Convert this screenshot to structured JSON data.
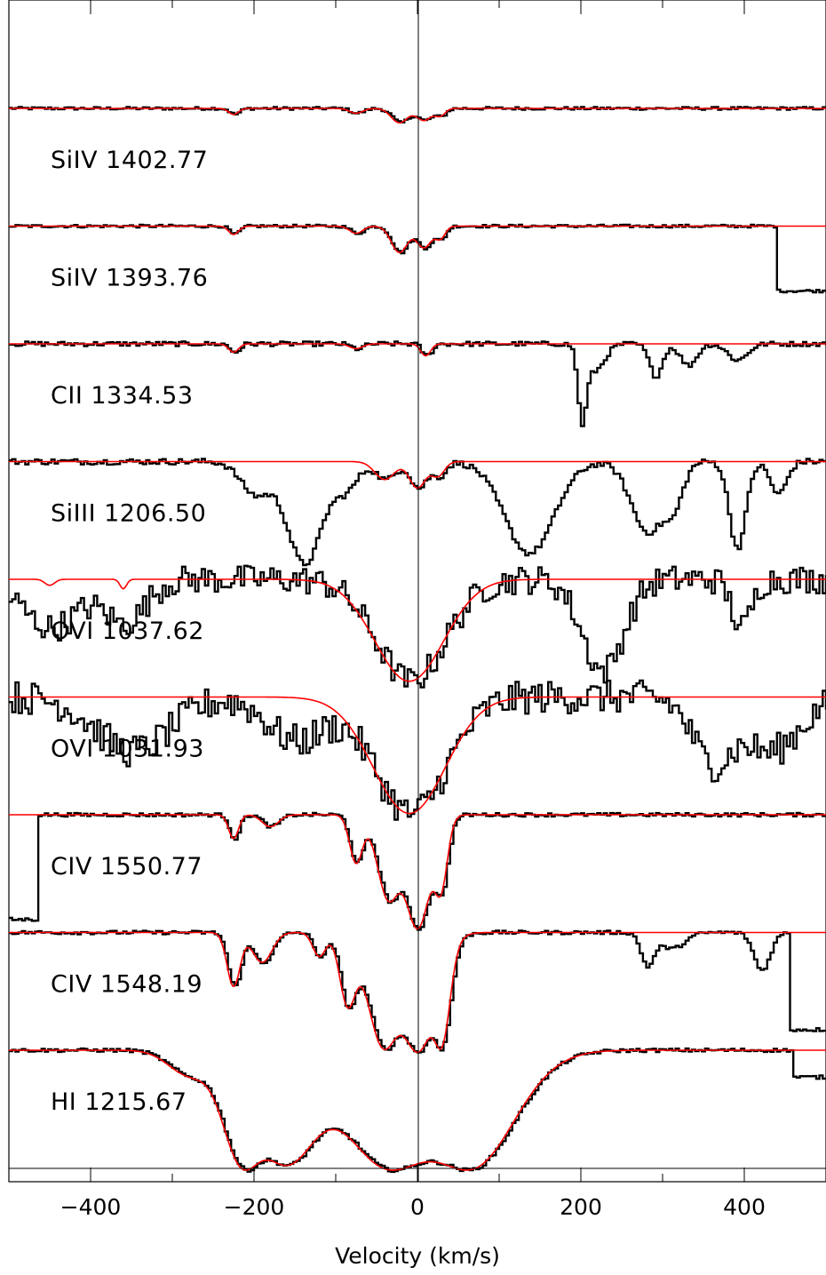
{
  "chart_data": {
    "type": "line",
    "xlabel": "Velocity (km/s)",
    "ylabel": "",
    "xlim": [
      -500,
      500
    ],
    "x_ticks": [
      -400,
      -200,
      0,
      200,
      400
    ],
    "x_tick_labels": [
      "−400",
      "−200",
      "0",
      "200",
      "400"
    ],
    "zero_velocity_line": 0,
    "grid": false,
    "colors": {
      "data": "#000000",
      "model": "#ff0000"
    },
    "series_note_order": "top to bottom",
    "panels": [
      {
        "label": "SiIV 1402.77",
        "components": [
          {
            "v": -225,
            "depth": 0.05,
            "w": 6
          },
          {
            "v": -75,
            "depth": 0.04,
            "w": 8
          },
          {
            "v": -22,
            "depth": 0.12,
            "w": 10
          },
          {
            "v": 8,
            "depth": 0.1,
            "w": 9
          },
          {
            "v": 28,
            "depth": 0.06,
            "w": 6
          }
        ],
        "contaminants": [],
        "noise": 0.012
      },
      {
        "label": "SiIV 1393.76",
        "components": [
          {
            "v": -225,
            "depth": 0.07,
            "w": 6
          },
          {
            "v": -75,
            "depth": 0.06,
            "w": 8
          },
          {
            "v": -22,
            "depth": 0.22,
            "w": 10
          },
          {
            "v": 8,
            "depth": 0.18,
            "w": 9
          },
          {
            "v": 28,
            "depth": 0.1,
            "w": 6
          }
        ],
        "contaminants": [
          {
            "v0": 440,
            "v1": 500,
            "depth": 0.6
          }
        ],
        "noise": 0.012
      },
      {
        "label": "CII 1334.53",
        "components": [
          {
            "v": -225,
            "depth": 0.07,
            "w": 6
          },
          {
            "v": -75,
            "depth": 0.04,
            "w": 8
          },
          {
            "v": 10,
            "depth": 0.1,
            "w": 6
          }
        ],
        "contaminants": [
          {
            "v": 200,
            "depth": 0.72,
            "w": 5
          },
          {
            "v": 215,
            "depth": 0.25,
            "w": 12
          },
          {
            "v": 290,
            "depth": 0.3,
            "w": 8
          },
          {
            "v": 330,
            "depth": 0.2,
            "w": 10
          },
          {
            "v": 390,
            "depth": 0.15,
            "w": 12
          }
        ],
        "noise": 0.02
      },
      {
        "label": "SiIII 1206.50",
        "components": [
          {
            "v": -40,
            "depth": 0.15,
            "w": 12
          },
          {
            "v": 0,
            "depth": 0.22,
            "w": 10
          },
          {
            "v": 25,
            "depth": 0.12,
            "w": 8
          }
        ],
        "contaminants": [
          {
            "v": -140,
            "depth": 0.95,
            "w": 22
          },
          {
            "v": -200,
            "depth": 0.3,
            "w": 18
          },
          {
            "v": -90,
            "depth": 0.25,
            "w": 15
          },
          {
            "v": 135,
            "depth": 0.85,
            "w": 30
          },
          {
            "v": 280,
            "depth": 0.65,
            "w": 20
          },
          {
            "v": 310,
            "depth": 0.4,
            "w": 12
          },
          {
            "v": 390,
            "depth": 0.8,
            "w": 10
          },
          {
            "v": 440,
            "depth": 0.3,
            "w": 10
          }
        ],
        "noise": 0.025
      },
      {
        "label": "OVI 1037.62",
        "components": [
          {
            "v": -10,
            "depth": 0.85,
            "w": 42
          }
        ],
        "contaminants": [
          {
            "v": -450,
            "depth": 0.45,
            "w": 35
          },
          {
            "v": -360,
            "depth": 0.4,
            "w": 25
          },
          {
            "v": 225,
            "depth": 0.85,
            "w": 25
          },
          {
            "v": 395,
            "depth": 0.45,
            "w": 12
          }
        ],
        "model_extra": [
          {
            "v": -450,
            "depth": 0.05,
            "w": 6
          },
          {
            "v": -360,
            "depth": 0.08,
            "w": 4
          }
        ],
        "noise": 0.12
      },
      {
        "label": "OVI 1031.93",
        "components": [
          {
            "v": -10,
            "depth": 0.97,
            "w": 44
          }
        ],
        "contaminants": [
          {
            "v": -350,
            "depth": 0.5,
            "w": 45
          },
          {
            "v": -150,
            "depth": 0.4,
            "w": 35
          },
          {
            "v": 360,
            "depth": 0.6,
            "w": 25
          },
          {
            "v": 430,
            "depth": 0.5,
            "w": 35
          }
        ],
        "noise": 0.14
      },
      {
        "label": "CIV 1550.77",
        "components": [
          {
            "v": -225,
            "depth": 0.2,
            "w": 6
          },
          {
            "v": -180,
            "depth": 0.1,
            "w": 10
          },
          {
            "v": -75,
            "depth": 0.4,
            "w": 8
          },
          {
            "v": -35,
            "depth": 0.7,
            "w": 14
          },
          {
            "v": 0,
            "depth": 0.95,
            "w": 16
          },
          {
            "v": 28,
            "depth": 0.6,
            "w": 8
          }
        ],
        "contaminants": [
          {
            "v0": -500,
            "v1": -465,
            "depth": 0.97
          }
        ],
        "noise": 0.015
      },
      {
        "label": "CIV 1548.19",
        "components": [
          {
            "v": -225,
            "depth": 0.45,
            "w": 8
          },
          {
            "v": -190,
            "depth": 0.25,
            "w": 12
          },
          {
            "v": -120,
            "depth": 0.2,
            "w": 8
          },
          {
            "v": -85,
            "depth": 0.6,
            "w": 10
          },
          {
            "v": -40,
            "depth": 0.97,
            "w": 20
          },
          {
            "v": 0,
            "depth": 1.0,
            "w": 22
          },
          {
            "v": 28,
            "depth": 0.95,
            "w": 10
          }
        ],
        "contaminants": [
          {
            "v": 280,
            "depth": 0.3,
            "w": 8
          },
          {
            "v": 310,
            "depth": 0.15,
            "w": 15
          },
          {
            "v": 420,
            "depth": 0.35,
            "w": 10
          },
          {
            "v0": 455,
            "v1": 500,
            "depth": 0.9
          }
        ],
        "noise": 0.015
      },
      {
        "label": "HI 1215.67",
        "components": [
          {
            "v": -210,
            "depth": 1.0,
            "w": 25
          },
          {
            "v": -160,
            "depth": 0.95,
            "w": 40
          },
          {
            "v": -30,
            "depth": 1.0,
            "w": 60
          },
          {
            "v": 60,
            "depth": 1.0,
            "w": 55
          },
          {
            "v": -280,
            "depth": 0.2,
            "w": 25
          }
        ],
        "contaminants": [
          {
            "v0": 460,
            "v1": 500,
            "depth": 0.25
          }
        ],
        "noise": 0.015
      }
    ]
  }
}
